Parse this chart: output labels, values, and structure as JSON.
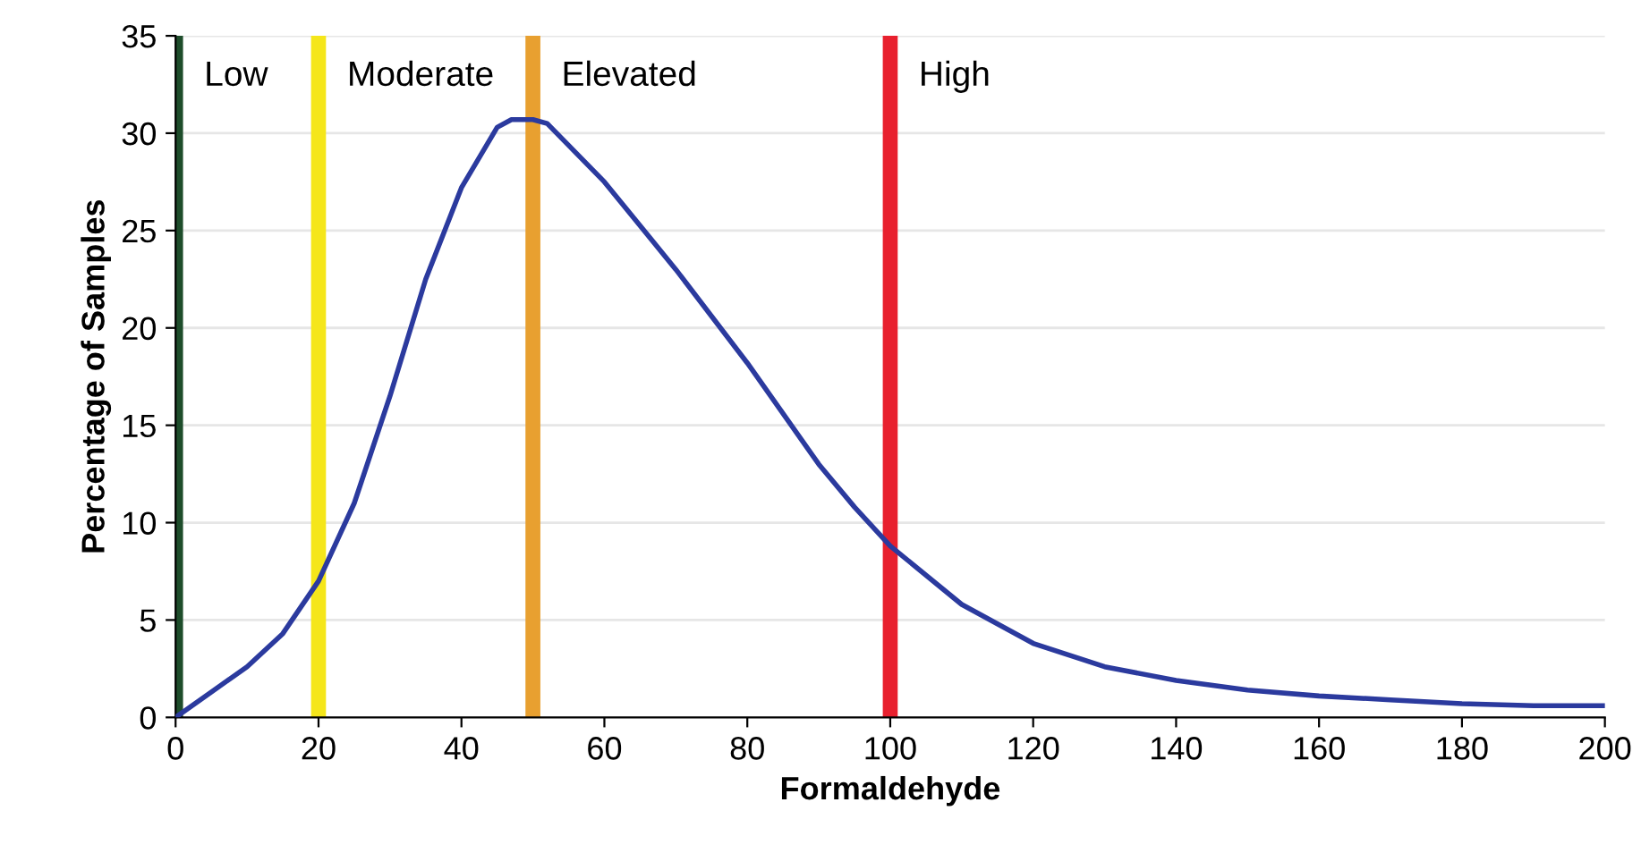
{
  "chart_data": {
    "type": "line",
    "xlabel": "Formaldehyde",
    "ylabel": "Percentage of Samples",
    "xlim": [
      0,
      200
    ],
    "xticks": [
      0,
      20,
      40,
      60,
      80,
      100,
      120,
      140,
      160,
      180,
      200
    ],
    "ylim": [
      0,
      35
    ],
    "yticks": [
      0,
      5,
      10,
      15,
      20,
      25,
      30,
      35
    ],
    "grid": "y",
    "marker": "none",
    "line_style": "solid",
    "series": [
      {
        "color": "#2b3a9e",
        "x": [
          0,
          5,
          10,
          15,
          20,
          25,
          30,
          35,
          40,
          45,
          47,
          50,
          52,
          60,
          70,
          80,
          90,
          95,
          100,
          110,
          120,
          130,
          140,
          150,
          160,
          170,
          180,
          190,
          200
        ],
        "values": [
          0,
          1.3,
          2.6,
          4.3,
          7,
          11,
          16.5,
          22.5,
          27.2,
          30.3,
          30.7,
          30.7,
          30.5,
          27.5,
          23,
          18.2,
          13,
          10.8,
          8.8,
          5.8,
          3.8,
          2.6,
          1.9,
          1.4,
          1.1,
          0.9,
          0.7,
          0.6,
          0.6
        ]
      }
    ],
    "ref_lines": [
      {
        "axis": "x",
        "value": 0,
        "label": "Low",
        "color": "#1e4d2b"
      },
      {
        "axis": "x",
        "value": 20,
        "label": "Moderate",
        "color": "#f5e61a"
      },
      {
        "axis": "x",
        "value": 50,
        "label": "Elevated",
        "color": "#e8a030"
      },
      {
        "axis": "x",
        "value": 100,
        "label": "High",
        "color": "#e8202e"
      }
    ]
  }
}
